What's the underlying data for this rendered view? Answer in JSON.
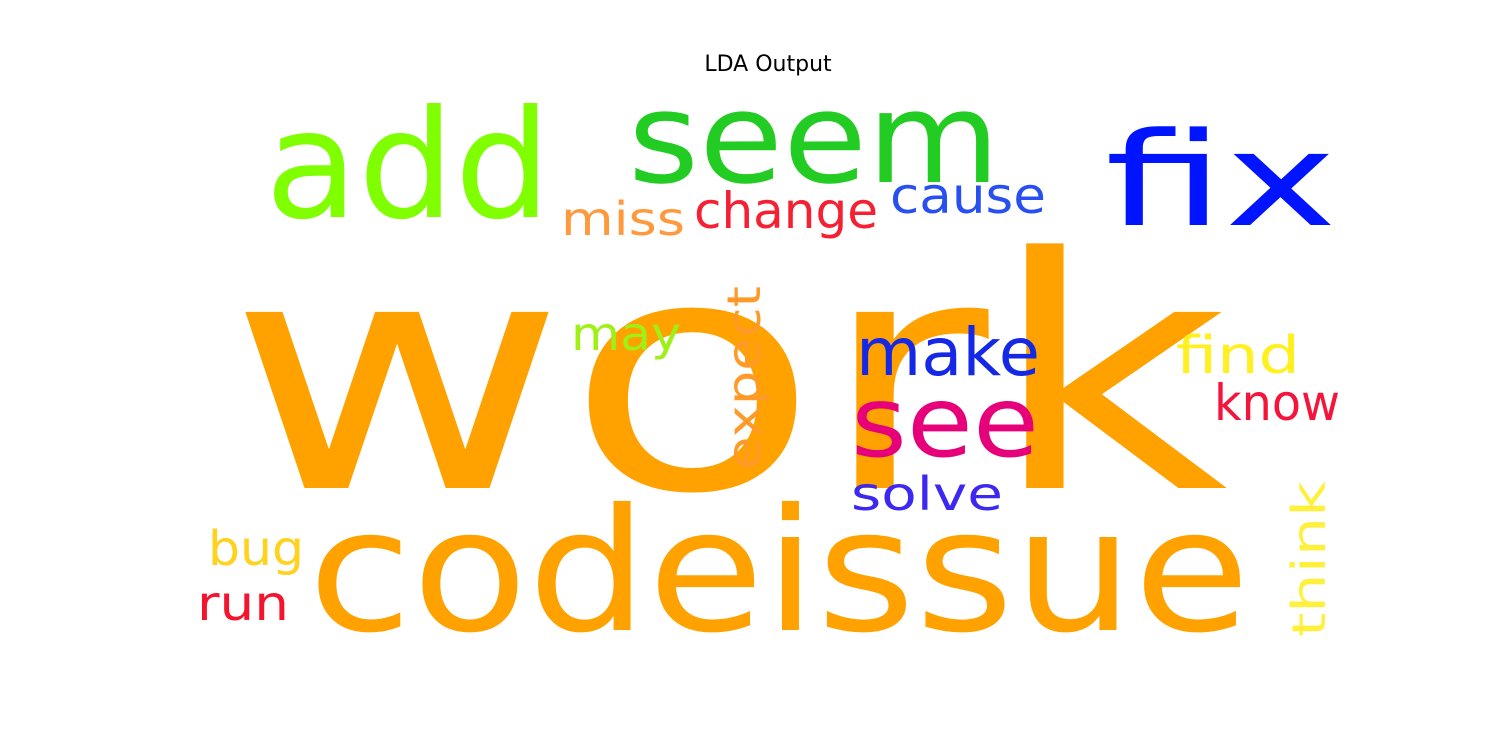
{
  "chart_data": {
    "type": "wordcloud",
    "title": "LDA Output",
    "words": [
      {
        "text": "work",
        "color": "#FFA200"
      },
      {
        "text": "codeissue",
        "color": "#FFA200"
      },
      {
        "text": "seem",
        "color": "#22CC22"
      },
      {
        "text": "add",
        "color": "#7FFF00"
      },
      {
        "text": "fix",
        "color": "#0014FF"
      },
      {
        "text": "see",
        "color": "#E6007A"
      },
      {
        "text": "make",
        "color": "#1428E6"
      },
      {
        "text": "cause",
        "color": "#2850F0"
      },
      {
        "text": "change",
        "color": "#F52032"
      },
      {
        "text": "miss",
        "color": "#FF9A3C"
      },
      {
        "text": "may",
        "color": "#9EF016"
      },
      {
        "text": "expect",
        "color": "#FF9A28"
      },
      {
        "text": "find",
        "color": "#FFF01E"
      },
      {
        "text": "know",
        "color": "#F5143C"
      },
      {
        "text": "solve",
        "color": "#3C28F0"
      },
      {
        "text": "think",
        "color": "#FFF03C"
      },
      {
        "text": "bug",
        "color": "#FFD21E"
      },
      {
        "text": "run",
        "color": "#F5142D"
      }
    ]
  }
}
